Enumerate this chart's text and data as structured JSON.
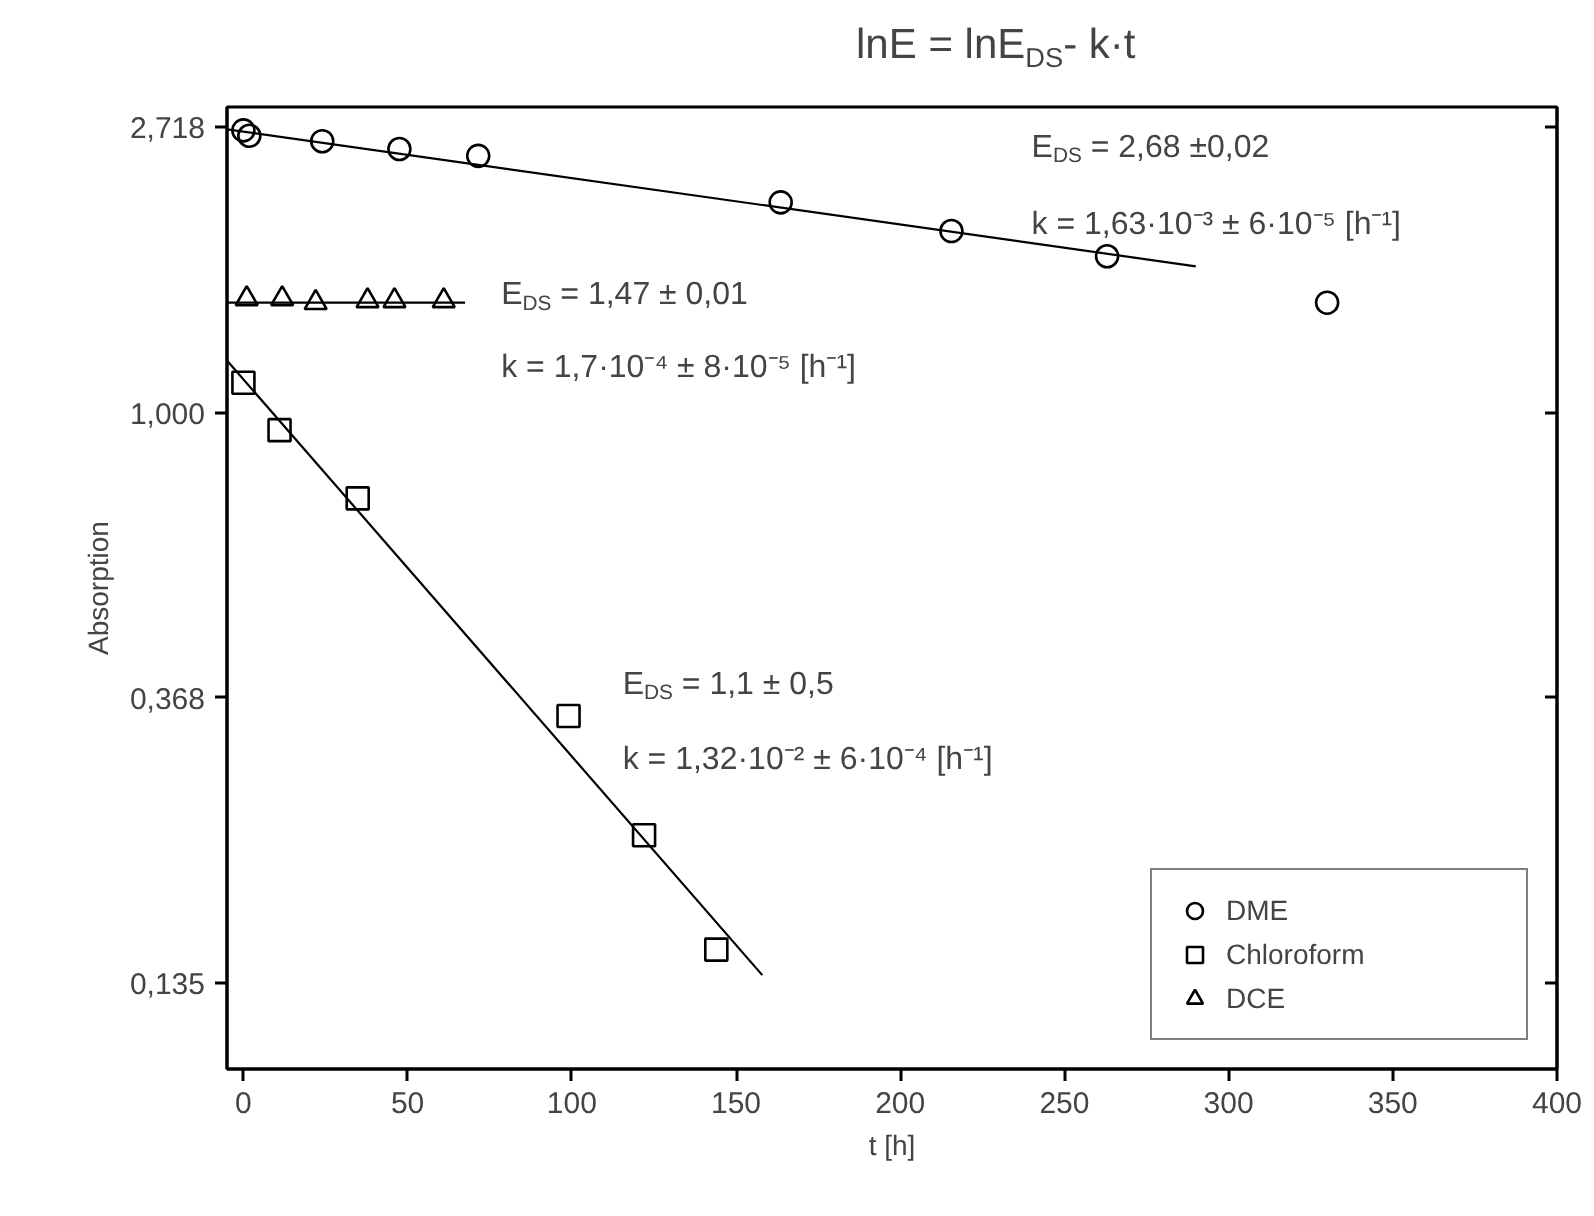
{
  "chart_data": {
    "type": "scatter",
    "title": "lnE = lnE$_{DS}$- k·t",
    "xlabel": "t [h]",
    "ylabel": "Absorption",
    "log": "y",
    "grid": false,
    "legend": "bottom right",
    "xlim": [
      -5,
      400
    ],
    "xticks": [
      0,
      50,
      100,
      150,
      200,
      250,
      300,
      350,
      400
    ],
    "ylim": [
      0.1,
      2.92
    ],
    "yticks": [
      {
        "value": 2.718,
        "label": "2,718"
      },
      {
        "value": 1.0,
        "label": "1,000"
      },
      {
        "value": 0.368,
        "label": "0,368"
      },
      {
        "value": 0.135,
        "label": "0,135"
      }
    ],
    "series": [
      {
        "name": "DME",
        "marker": "circle",
        "color": "#000000",
        "x": [
          0,
          1.8,
          24,
          47.5,
          71.5,
          163.6,
          215.6,
          263,
          330
        ],
        "values": [
          2.69,
          2.64,
          2.59,
          2.52,
          2.46,
          2.09,
          1.89,
          1.73,
          1.47
        ]
      },
      {
        "name": "Chloroform",
        "marker": "square",
        "color": "#000000",
        "x": [
          0,
          11,
          34.8,
          99,
          122,
          144
        ],
        "values": [
          1.11,
          0.94,
          0.74,
          0.345,
          0.227,
          0.152
        ]
      },
      {
        "name": "DCE",
        "marker": "triangle",
        "color": "#000000",
        "x": [
          1,
          11.8,
          22,
          37.8,
          46,
          61
        ],
        "values": [
          1.49,
          1.49,
          1.47,
          1.48,
          1.48,
          1.48
        ]
      },
      {
        "type": "line",
        "color": "#000000",
        "x": [
          -5,
          290
        ],
        "values": [
          2.7,
          1.67
        ]
      },
      {
        "type": "line",
        "color": "#000000",
        "x": [
          -5,
          158
        ],
        "values": [
          1.2,
          0.139
        ]
      },
      {
        "type": "line",
        "color": "#000000",
        "x": [
          -5,
          67.5
        ],
        "values": [
          1.47,
          1.47
        ]
      }
    ],
    "annotations": [
      "E$_{DS}$ = 2,68 ±0,02",
      "k = 1,63·10⁻³ ± 6·10⁻⁵ [h⁻¹]",
      "E$_{DS}$ = 1,47 ± 0,01",
      "k = 1,7·10⁻⁴ ± 8·10⁻⁵ [h⁻¹]",
      "E$_{DS}$ = 1,1 ± 0,5",
      "k = 1,32·10⁻² ± 6·10⁻⁴ [h⁻¹]"
    ]
  }
}
